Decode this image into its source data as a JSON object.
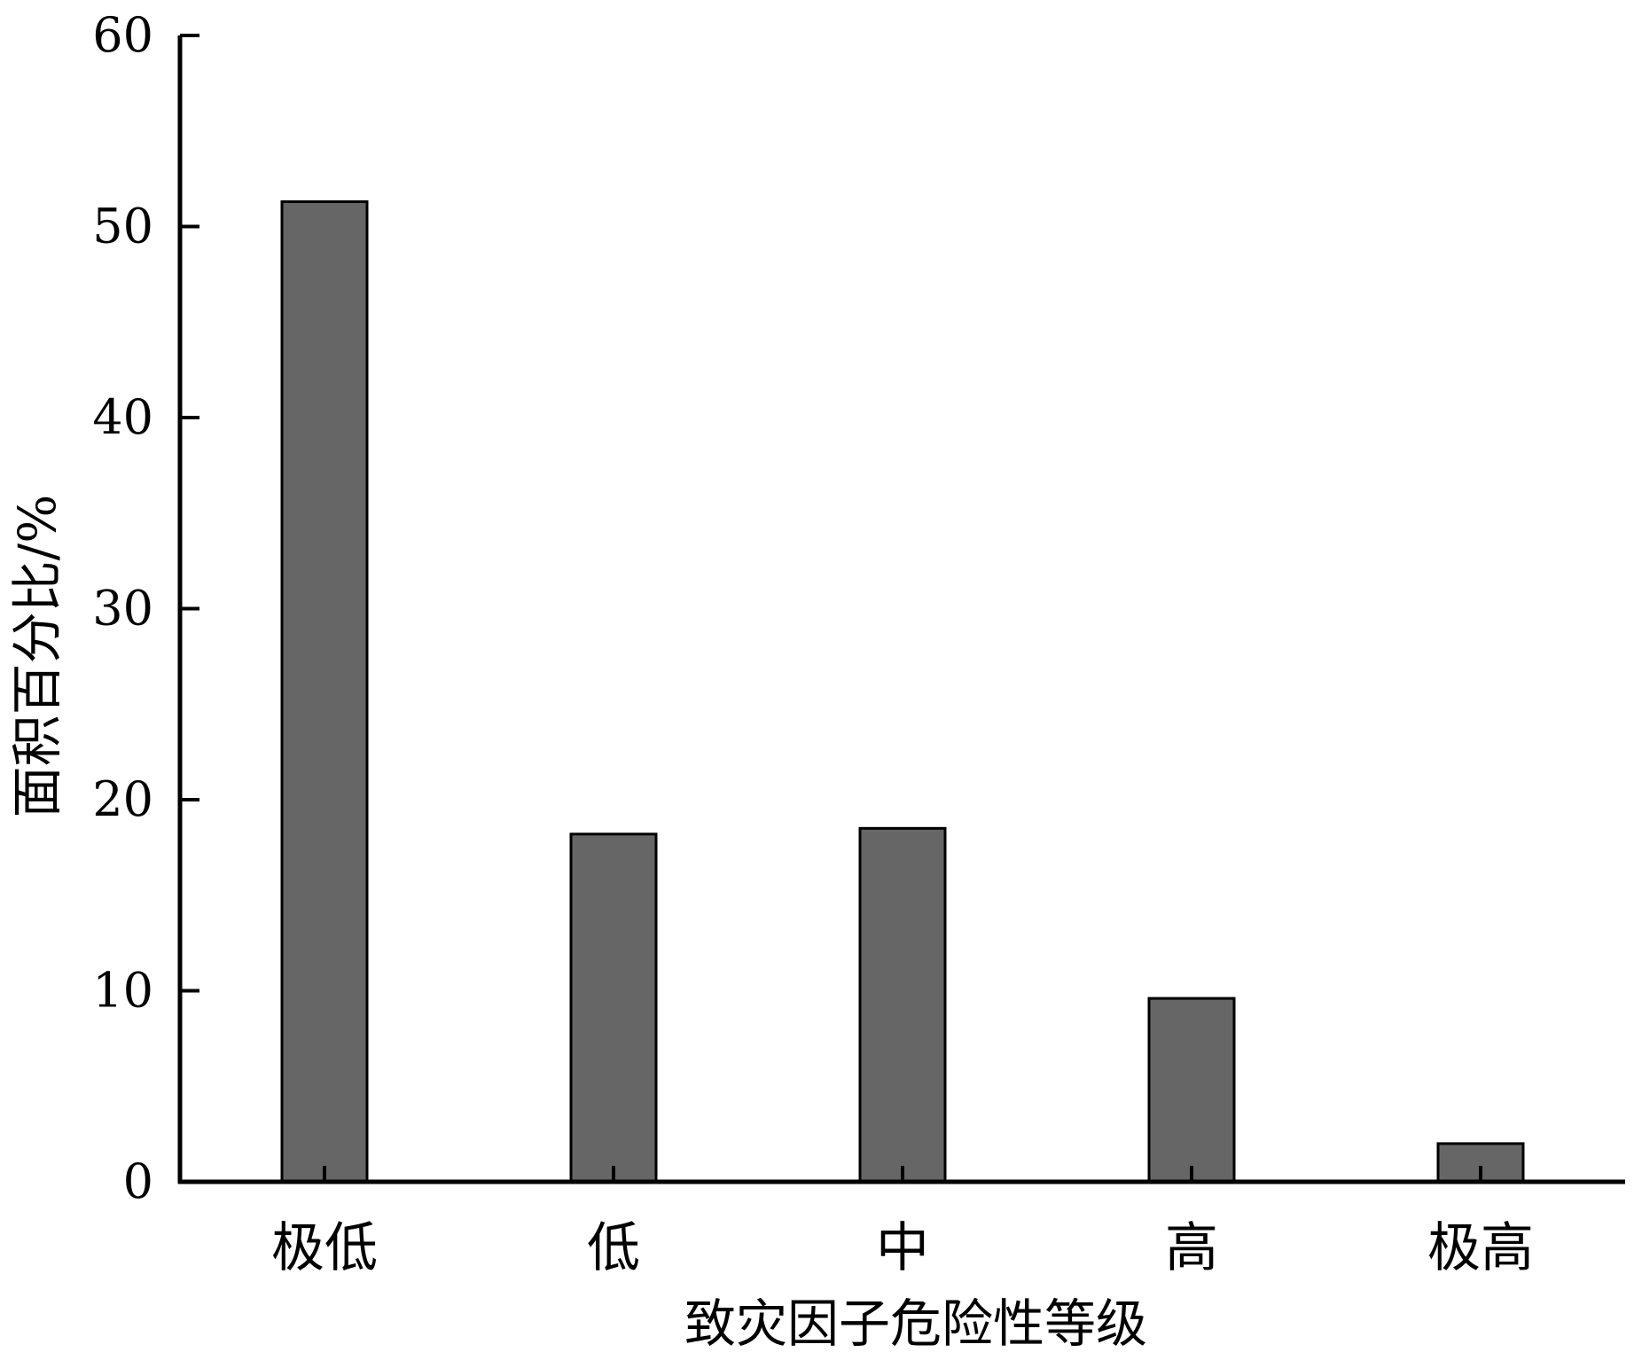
{
  "chart_data": {
    "type": "bar",
    "title": "",
    "xlabel": "致灾因子危险性等级",
    "ylabel": "面积百分比/%",
    "categories": [
      "极低",
      "低",
      "中",
      "高",
      "极高"
    ],
    "values": [
      51.3,
      18.2,
      18.5,
      9.6,
      2.0
    ],
    "ylim": [
      0,
      60
    ],
    "yticks": [
      0,
      10,
      20,
      30,
      40,
      50,
      60
    ],
    "ytick_labels": [
      "0",
      "10",
      "20",
      "30",
      "40",
      "50",
      "60"
    ],
    "grid": false,
    "legend": "none",
    "bar_color": "#666666",
    "bar_edge_color": "#000000",
    "axis_color": "#000000"
  }
}
